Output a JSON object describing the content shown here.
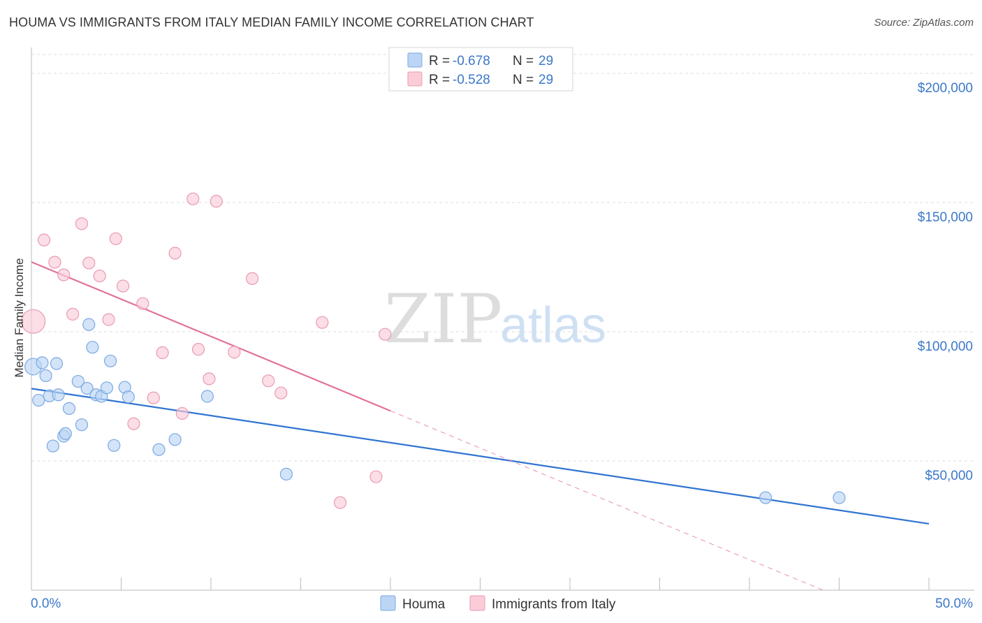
{
  "title": "HOUMA VS IMMIGRANTS FROM ITALY MEDIAN FAMILY INCOME CORRELATION CHART",
  "source": "Source: ZipAtlas.com",
  "watermark": {
    "zip": "ZIP",
    "atlas": "atlas"
  },
  "colors": {
    "houma_fill": "#bcd5f5",
    "houma_stroke": "#7aa8e3",
    "houma_line": "#2f74d0",
    "italy_fill": "#f9ccd8",
    "italy_stroke": "#eb9ab2",
    "italy_line": "#e2729a",
    "axis_text": "#3b78c9",
    "grid": "#dedede"
  },
  "legend": {
    "rows": [
      {
        "r_label": "R =",
        "r_value": "-0.678",
        "n_label": "N =",
        "n_value": "29"
      },
      {
        "r_label": "R =",
        "r_value": "-0.528",
        "n_label": "N =",
        "n_value": "29"
      }
    ]
  },
  "bottom_legend": [
    "Houma",
    "Immigrants from Italy"
  ],
  "chart_data": {
    "type": "scatter",
    "title": "HOUMA VS IMMIGRANTS FROM ITALY MEDIAN FAMILY INCOME CORRELATION CHART",
    "xlabel": "",
    "ylabel": "Median Family Income",
    "xlim": [
      0,
      50
    ],
    "ylim": [
      0,
      210000
    ],
    "x_tick_labels": [
      "0.0%",
      "50.0%"
    ],
    "y_ticks": [
      50000,
      100000,
      150000,
      200000
    ],
    "y_tick_labels": [
      "$50,000",
      "$100,000",
      "$150,000",
      "$200,000"
    ],
    "grid": true,
    "series": [
      {
        "name": "Houma",
        "r": -0.678,
        "n": 29,
        "trend": {
          "x0": 0,
          "y0": 78000,
          "x1": 50,
          "y1": 25700,
          "dashed_to": 50
        },
        "points": [
          {
            "x": 0.1,
            "y": 86500,
            "s": 1.4
          },
          {
            "x": 0.4,
            "y": 73500
          },
          {
            "x": 0.6,
            "y": 88000
          },
          {
            "x": 0.8,
            "y": 83000
          },
          {
            "x": 1.0,
            "y": 75200
          },
          {
            "x": 1.2,
            "y": 55800
          },
          {
            "x": 1.4,
            "y": 87700
          },
          {
            "x": 1.5,
            "y": 75600
          },
          {
            "x": 1.8,
            "y": 59600
          },
          {
            "x": 1.9,
            "y": 60600
          },
          {
            "x": 2.1,
            "y": 70300
          },
          {
            "x": 2.6,
            "y": 80800
          },
          {
            "x": 2.8,
            "y": 64000
          },
          {
            "x": 3.1,
            "y": 78100
          },
          {
            "x": 3.2,
            "y": 102800
          },
          {
            "x": 3.4,
            "y": 94000
          },
          {
            "x": 3.6,
            "y": 75600
          },
          {
            "x": 3.9,
            "y": 75000
          },
          {
            "x": 4.2,
            "y": 78300
          },
          {
            "x": 4.4,
            "y": 88700
          },
          {
            "x": 4.6,
            "y": 56000
          },
          {
            "x": 5.2,
            "y": 78500
          },
          {
            "x": 5.4,
            "y": 74800
          },
          {
            "x": 7.1,
            "y": 54400
          },
          {
            "x": 8.0,
            "y": 58300
          },
          {
            "x": 9.8,
            "y": 75000
          },
          {
            "x": 14.2,
            "y": 44900
          },
          {
            "x": 40.9,
            "y": 35800
          },
          {
            "x": 45.0,
            "y": 35800
          }
        ]
      },
      {
        "name": "Immigrants from Italy",
        "r": -0.528,
        "n": 29,
        "trend": {
          "x0": 0,
          "y0": 127000,
          "x1": 20,
          "y1": 69400,
          "dashed_to": 50
        },
        "points": [
          {
            "x": 0.1,
            "y": 104000,
            "s": 2.0
          },
          {
            "x": 0.7,
            "y": 135500
          },
          {
            "x": 1.3,
            "y": 126900
          },
          {
            "x": 1.8,
            "y": 122000
          },
          {
            "x": 2.3,
            "y": 106800
          },
          {
            "x": 2.8,
            "y": 141800
          },
          {
            "x": 3.2,
            "y": 126600
          },
          {
            "x": 3.8,
            "y": 121600
          },
          {
            "x": 4.3,
            "y": 104700
          },
          {
            "x": 4.7,
            "y": 136000
          },
          {
            "x": 5.1,
            "y": 117700
          },
          {
            "x": 5.7,
            "y": 64400
          },
          {
            "x": 6.2,
            "y": 110900
          },
          {
            "x": 6.8,
            "y": 74400
          },
          {
            "x": 7.3,
            "y": 91900
          },
          {
            "x": 8.0,
            "y": 130400
          },
          {
            "x": 8.4,
            "y": 68400
          },
          {
            "x": 9.0,
            "y": 151400
          },
          {
            "x": 9.3,
            "y": 93200
          },
          {
            "x": 9.9,
            "y": 81800
          },
          {
            "x": 10.3,
            "y": 150500
          },
          {
            "x": 11.3,
            "y": 92100
          },
          {
            "x": 12.3,
            "y": 120600
          },
          {
            "x": 13.2,
            "y": 81000
          },
          {
            "x": 13.9,
            "y": 76300
          },
          {
            "x": 16.2,
            "y": 103600
          },
          {
            "x": 17.2,
            "y": 33900
          },
          {
            "x": 19.2,
            "y": 43900
          },
          {
            "x": 19.7,
            "y": 99000
          }
        ]
      }
    ]
  }
}
